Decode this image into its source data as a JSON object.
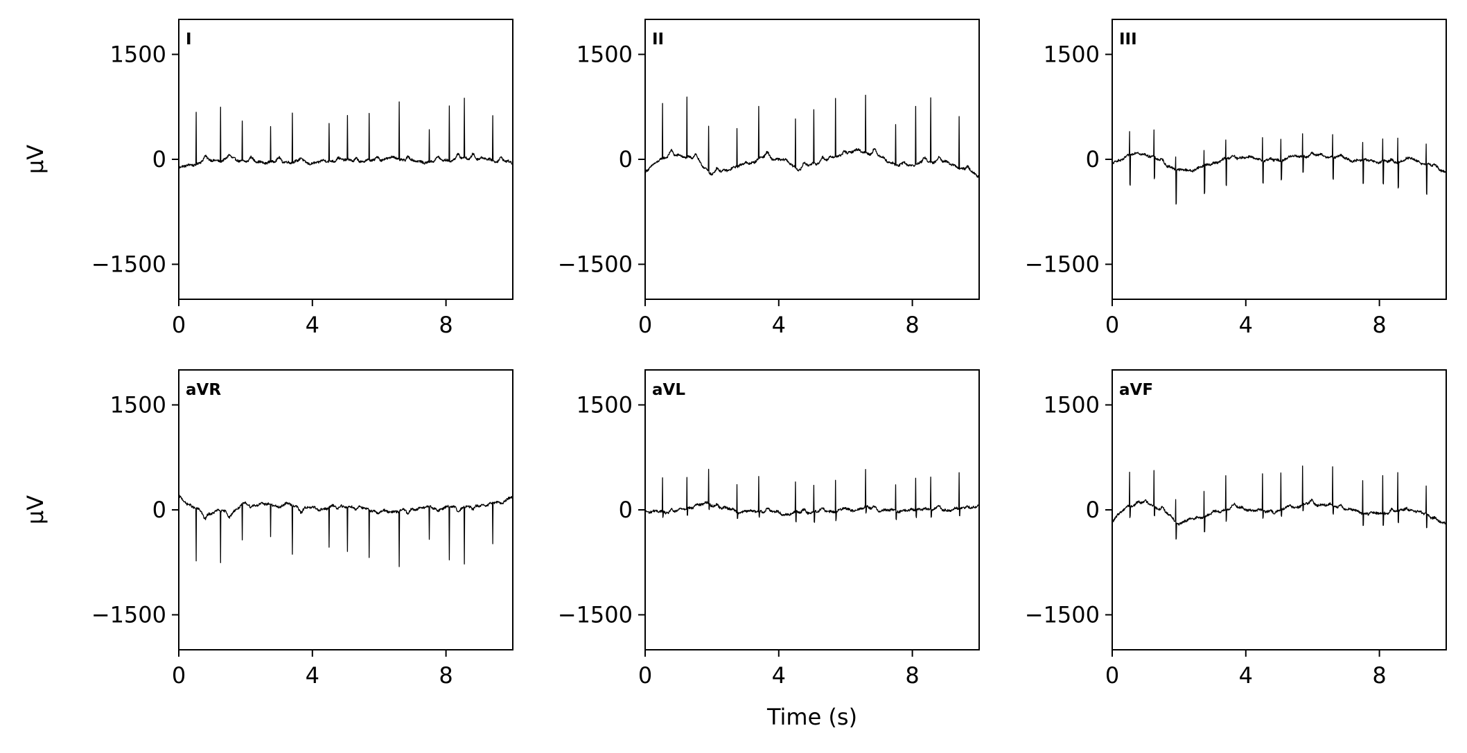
{
  "chart_data": [
    {
      "type": "line",
      "lead": "I",
      "xlim": [
        0,
        10
      ],
      "ylim": [
        -2000,
        2000
      ],
      "xticks": [
        0,
        4,
        8
      ],
      "yticks": [
        1500,
        0,
        -1500
      ],
      "xtick_labels": [
        "0",
        "4",
        "8"
      ],
      "ytick_labels": [
        "1500",
        "0",
        "−1500"
      ],
      "ylabel": "μV",
      "xlabel": "",
      "baseline": {
        "x": [
          0,
          0.8,
          1.6,
          2.4,
          3.2,
          4.0,
          4.8,
          5.6,
          6.4,
          7.2,
          8.0,
          8.8,
          9.6,
          10.0
        ],
        "y": [
          -130,
          -20,
          0,
          -40,
          -30,
          -50,
          -10,
          -30,
          20,
          -40,
          -10,
          20,
          -20,
          -60
        ]
      },
      "beats": [
        {
          "t": 0.52,
          "amp": 760,
          "s": 0
        },
        {
          "t": 1.25,
          "amp": 760,
          "s": 0
        },
        {
          "t": 1.9,
          "amp": 570,
          "s": 0
        },
        {
          "t": 2.75,
          "amp": 510,
          "s": 0
        },
        {
          "t": 3.4,
          "amp": 720,
          "s": 0
        },
        {
          "t": 4.5,
          "amp": 540,
          "s": 0
        },
        {
          "t": 5.05,
          "amp": 620,
          "s": 0
        },
        {
          "t": 5.7,
          "amp": 680,
          "s": 0
        },
        {
          "t": 6.6,
          "amp": 810,
          "s": 0
        },
        {
          "t": 7.5,
          "amp": 460,
          "s": 0
        },
        {
          "t": 8.1,
          "amp": 770,
          "s": 0
        },
        {
          "t": 8.55,
          "amp": 830,
          "s": 0
        },
        {
          "t": 9.4,
          "amp": 640,
          "s": 0
        }
      ]
    },
    {
      "type": "line",
      "lead": "II",
      "xlim": [
        0,
        10
      ],
      "ylim": [
        -2000,
        2000
      ],
      "xticks": [
        0,
        4,
        8
      ],
      "yticks": [
        1500,
        0,
        -1500
      ],
      "xtick_labels": [
        "0",
        "4",
        "8"
      ],
      "ytick_labels": [
        "1500",
        "0",
        "−1500"
      ],
      "ylabel": "",
      "xlabel": "",
      "baseline": {
        "x": [
          0,
          0.4,
          1.0,
          1.6,
          2.0,
          2.4,
          3.0,
          3.6,
          4.2,
          4.6,
          5.2,
          5.8,
          6.4,
          7.0,
          7.6,
          8.2,
          8.8,
          9.4,
          10.0
        ],
        "y": [
          -200,
          0,
          70,
          -20,
          -220,
          -150,
          -80,
          40,
          -20,
          -140,
          -40,
          50,
          130,
          50,
          -100,
          -60,
          -20,
          -110,
          -240
        ]
      },
      "beats": [
        {
          "t": 0.52,
          "amp": 800,
          "s": 0
        },
        {
          "t": 1.25,
          "amp": 850,
          "s": 0
        },
        {
          "t": 1.9,
          "amp": 650,
          "s": 0
        },
        {
          "t": 2.75,
          "amp": 560,
          "s": 0
        },
        {
          "t": 3.4,
          "amp": 760,
          "s": 0
        },
        {
          "t": 4.5,
          "amp": 690,
          "s": 0
        },
        {
          "t": 5.05,
          "amp": 750,
          "s": 0
        },
        {
          "t": 5.7,
          "amp": 830,
          "s": 0
        },
        {
          "t": 6.6,
          "amp": 830,
          "s": 0
        },
        {
          "t": 7.5,
          "amp": 570,
          "s": 0
        },
        {
          "t": 8.1,
          "amp": 840,
          "s": 0
        },
        {
          "t": 8.55,
          "amp": 920,
          "s": 0
        },
        {
          "t": 9.4,
          "amp": 740,
          "s": 0
        }
      ]
    },
    {
      "type": "line",
      "lead": "III",
      "xlim": [
        0,
        10
      ],
      "ylim": [
        -2000,
        2000
      ],
      "xticks": [
        0,
        4,
        8
      ],
      "yticks": [
        1500,
        0,
        -1500
      ],
      "xtick_labels": [
        "0",
        "4",
        "8"
      ],
      "ytick_labels": [
        "1500",
        "0",
        "−1500"
      ],
      "ylabel": "",
      "xlabel": "",
      "baseline": {
        "x": [
          0,
          0.5,
          1.0,
          1.5,
          2.0,
          2.5,
          3.0,
          3.6,
          4.2,
          4.8,
          5.4,
          6.0,
          6.6,
          7.2,
          7.8,
          8.4,
          9.0,
          9.6,
          10.0
        ],
        "y": [
          -60,
          60,
          80,
          -40,
          -170,
          -140,
          -60,
          30,
          20,
          -30,
          30,
          60,
          40,
          -10,
          -30,
          -40,
          0,
          -100,
          -180
        ]
      },
      "beats": [
        {
          "t": 0.52,
          "amp": 320,
          "s": -420
        },
        {
          "t": 1.25,
          "amp": 380,
          "s": -300
        },
        {
          "t": 1.9,
          "amp": 180,
          "s": -480
        },
        {
          "t": 2.75,
          "amp": 230,
          "s": -400
        },
        {
          "t": 3.4,
          "amp": 250,
          "s": -380
        },
        {
          "t": 4.5,
          "amp": 330,
          "s": -300
        },
        {
          "t": 5.05,
          "amp": 320,
          "s": -260
        },
        {
          "t": 5.7,
          "amp": 330,
          "s": -220
        },
        {
          "t": 6.6,
          "amp": 330,
          "s": -300
        },
        {
          "t": 7.5,
          "amp": 240,
          "s": -320
        },
        {
          "t": 8.1,
          "amp": 300,
          "s": -320
        },
        {
          "t": 8.55,
          "amp": 360,
          "s": -350
        },
        {
          "t": 9.4,
          "amp": 280,
          "s": -430
        }
      ]
    },
    {
      "type": "line",
      "lead": "aVR",
      "xlim": [
        0,
        10
      ],
      "ylim": [
        -2000,
        2000
      ],
      "xticks": [
        0,
        4,
        8
      ],
      "yticks": [
        1500,
        0,
        -1500
      ],
      "xtick_labels": [
        "0",
        "4",
        "8"
      ],
      "ytick_labels": [
        "1500",
        "0",
        "−1500"
      ],
      "ylabel": "μV",
      "xlabel": "",
      "baseline": {
        "x": [
          0,
          0.4,
          0.8,
          1.2,
          1.6,
          2.0,
          2.4,
          2.8,
          3.2,
          3.6,
          4.2,
          4.8,
          5.4,
          6.0,
          6.6,
          7.2,
          7.8,
          8.4,
          9.0,
          9.6,
          10.0
        ],
        "y": [
          200,
          40,
          -60,
          -20,
          -30,
          90,
          80,
          70,
          80,
          40,
          10,
          60,
          40,
          -20,
          -20,
          30,
          30,
          40,
          60,
          110,
          200
        ]
      },
      "beats": [
        {
          "t": 0.52,
          "amp": -760,
          "s": 0
        },
        {
          "t": 1.25,
          "amp": -740,
          "s": 0
        },
        {
          "t": 1.9,
          "amp": -510,
          "s": 0
        },
        {
          "t": 2.75,
          "amp": -480,
          "s": 0
        },
        {
          "t": 3.4,
          "amp": -700,
          "s": 0
        },
        {
          "t": 4.5,
          "amp": -570,
          "s": 0
        },
        {
          "t": 5.05,
          "amp": -630,
          "s": 0
        },
        {
          "t": 5.7,
          "amp": -690,
          "s": 0
        },
        {
          "t": 6.6,
          "amp": -790,
          "s": 0
        },
        {
          "t": 7.5,
          "amp": -460,
          "s": 0
        },
        {
          "t": 8.1,
          "amp": -760,
          "s": 0
        },
        {
          "t": 8.55,
          "amp": -830,
          "s": 0
        },
        {
          "t": 9.4,
          "amp": -600,
          "s": 0
        }
      ]
    },
    {
      "type": "line",
      "lead": "aVL",
      "xlim": [
        0,
        10
      ],
      "ylim": [
        -2000,
        2000
      ],
      "xticks": [
        0,
        4,
        8
      ],
      "yticks": [
        1500,
        0,
        -1500
      ],
      "xtick_labels": [
        "0",
        "4",
        "8"
      ],
      "ytick_labels": [
        "1500",
        "0",
        "−1500"
      ],
      "ylabel": "",
      "xlabel": "",
      "baseline": {
        "x": [
          0,
          0.6,
          1.2,
          1.8,
          2.4,
          3.0,
          3.6,
          4.2,
          4.8,
          5.4,
          6.0,
          6.6,
          7.2,
          7.8,
          8.4,
          9.0,
          9.6,
          10.0
        ],
        "y": [
          -10,
          -40,
          10,
          90,
          20,
          -40,
          -10,
          -60,
          -30,
          -20,
          -10,
          30,
          -10,
          -20,
          10,
          0,
          20,
          60
        ]
      },
      "beats": [
        {
          "t": 0.52,
          "amp": 470,
          "s": -80
        },
        {
          "t": 1.25,
          "amp": 450,
          "s": -90
        },
        {
          "t": 1.9,
          "amp": 490,
          "s": -70
        },
        {
          "t": 2.75,
          "amp": 380,
          "s": -80
        },
        {
          "t": 3.4,
          "amp": 500,
          "s": -70
        },
        {
          "t": 4.5,
          "amp": 420,
          "s": -140
        },
        {
          "t": 5.05,
          "amp": 370,
          "s": -150
        },
        {
          "t": 5.7,
          "amp": 460,
          "s": -110
        },
        {
          "t": 6.6,
          "amp": 520,
          "s": -80
        },
        {
          "t": 7.5,
          "amp": 380,
          "s": -120
        },
        {
          "t": 8.1,
          "amp": 440,
          "s": -100
        },
        {
          "t": 8.55,
          "amp": 460,
          "s": -110
        },
        {
          "t": 9.4,
          "amp": 500,
          "s": -90
        }
      ]
    },
    {
      "type": "line",
      "lead": "aVF",
      "xlim": [
        0,
        10
      ],
      "ylim": [
        -2000,
        2000
      ],
      "xticks": [
        0,
        4,
        8
      ],
      "yticks": [
        1500,
        0,
        -1500
      ],
      "xtick_labels": [
        "0",
        "4",
        "8"
      ],
      "ytick_labels": [
        "1500",
        "0",
        "−1500"
      ],
      "ylabel": "",
      "xlabel": "Time (s)",
      "baseline": {
        "x": [
          0,
          0.5,
          1.0,
          1.5,
          2.0,
          2.5,
          3.0,
          3.6,
          4.2,
          4.8,
          5.4,
          6.0,
          6.6,
          7.2,
          7.8,
          8.4,
          9.0,
          9.6,
          10.0
        ],
        "y": [
          -150,
          60,
          110,
          0,
          -200,
          -120,
          -60,
          40,
          0,
          -40,
          40,
          90,
          60,
          -10,
          -70,
          -30,
          0,
          -110,
          -220
        ]
      },
      "beats": [
        {
          "t": 0.52,
          "amp": 480,
          "s": -150
        },
        {
          "t": 1.25,
          "amp": 520,
          "s": -120
        },
        {
          "t": 1.9,
          "amp": 320,
          "s": -230
        },
        {
          "t": 2.75,
          "amp": 360,
          "s": -200
        },
        {
          "t": 3.4,
          "amp": 500,
          "s": -150
        },
        {
          "t": 4.5,
          "amp": 520,
          "s": -100
        },
        {
          "t": 5.05,
          "amp": 520,
          "s": -80
        },
        {
          "t": 5.7,
          "amp": 540,
          "s": -90
        },
        {
          "t": 6.6,
          "amp": 530,
          "s": -120
        },
        {
          "t": 7.5,
          "amp": 470,
          "s": -160
        },
        {
          "t": 8.1,
          "amp": 540,
          "s": -180
        },
        {
          "t": 8.55,
          "amp": 560,
          "s": -160
        },
        {
          "t": 9.4,
          "amp": 390,
          "s": -200
        }
      ]
    }
  ],
  "style": {
    "line_color": "#000000",
    "axes_color": "#000000",
    "background": "#ffffff"
  }
}
